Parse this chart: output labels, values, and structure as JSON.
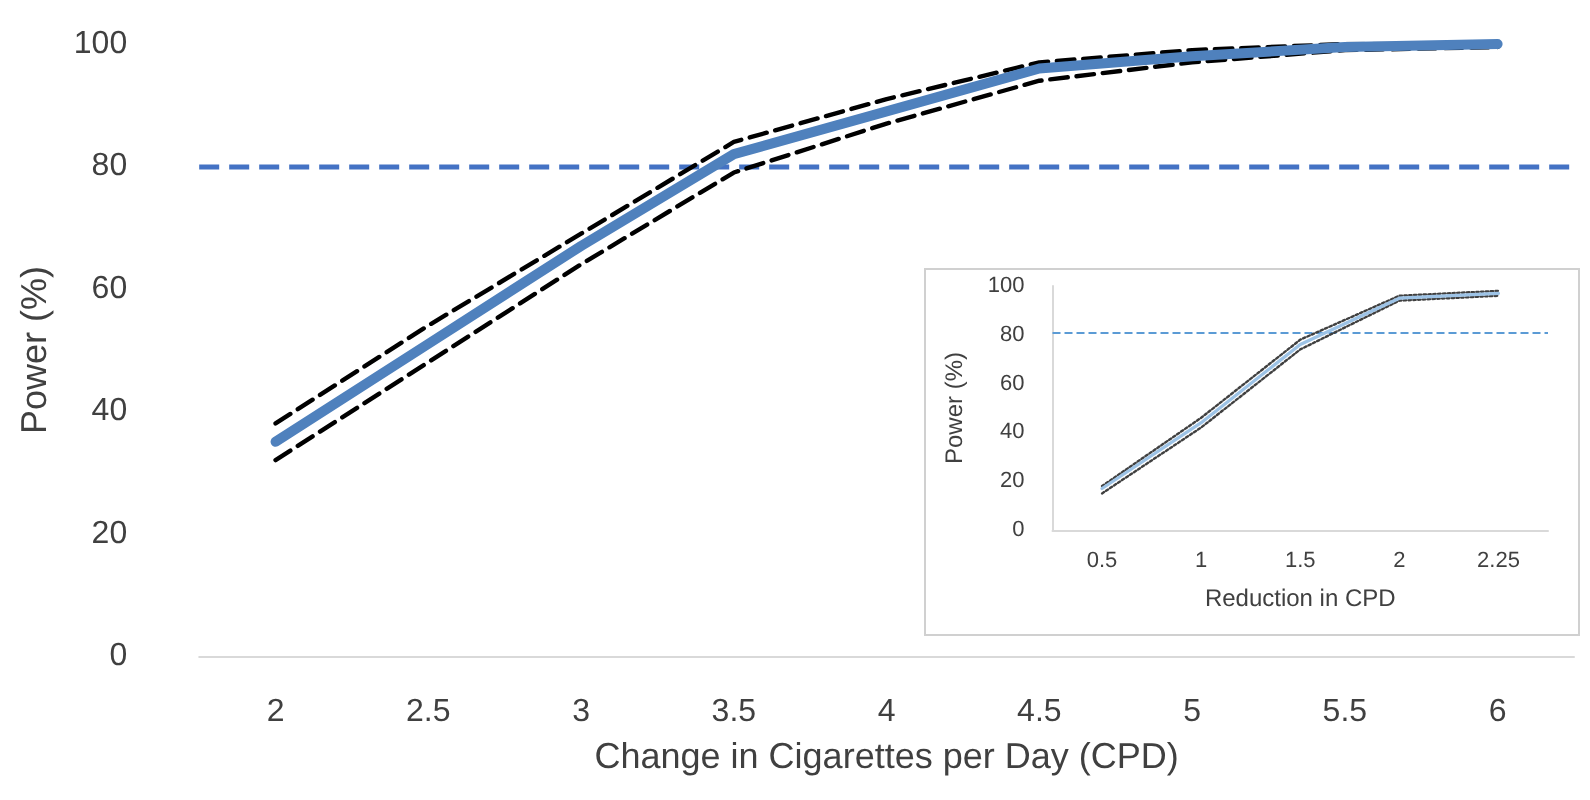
{
  "chart_data": [
    {
      "type": "line",
      "xlabel": "Change in Cigarettes per Day (CPD)",
      "ylabel": "Power (%)",
      "categories": [
        "2",
        "2.5",
        "3",
        "3.5",
        "4",
        "4.5",
        "5",
        "5.5",
        "6"
      ],
      "series": [
        {
          "color": "#4f81bd",
          "line_style": "solid",
          "values": [
            35,
            51,
            67,
            82,
            89,
            96,
            98,
            99.5,
            100
          ]
        },
        {
          "color": "#000000",
          "line_style": "dashed",
          "values": [
            38,
            54,
            69,
            84,
            91,
            97,
            99,
            100,
            100
          ]
        },
        {
          "color": "#000000",
          "line_style": "dashed",
          "values": [
            32,
            48,
            64,
            79,
            87,
            94,
            97,
            99,
            99.5
          ]
        }
      ],
      "ylim": [
        0,
        100
      ],
      "yticks": [
        0,
        20,
        40,
        60,
        80,
        100
      ],
      "grid": false,
      "marker": "none",
      "ref_lines": [
        {
          "axis": "y",
          "value": 80,
          "color": "#4472c4",
          "line_style": "dashed"
        }
      ]
    },
    {
      "type": "line",
      "xlabel": "Reduction in CPD",
      "ylabel": "Power (%)",
      "categories": [
        "0.5",
        "1",
        "1.5",
        "2",
        "2.25"
      ],
      "series": [
        {
          "color": "#9dc3e6",
          "line_style": "solid",
          "values": [
            17,
            44,
            76,
            95,
            97
          ]
        },
        {
          "color": "#404040",
          "line_style": "dotted",
          "values": [
            18,
            46,
            78,
            96,
            98
          ]
        },
        {
          "color": "#404040",
          "line_style": "dotted",
          "values": [
            15,
            42,
            74,
            94,
            96
          ]
        }
      ],
      "ylim": [
        0,
        100
      ],
      "yticks": [
        0,
        20,
        40,
        60,
        80,
        100
      ],
      "grid": false,
      "marker": "none",
      "ref_lines": [
        {
          "axis": "y",
          "value": 81,
          "color": "#5b9bd5",
          "line_style": "dashed"
        }
      ]
    }
  ]
}
